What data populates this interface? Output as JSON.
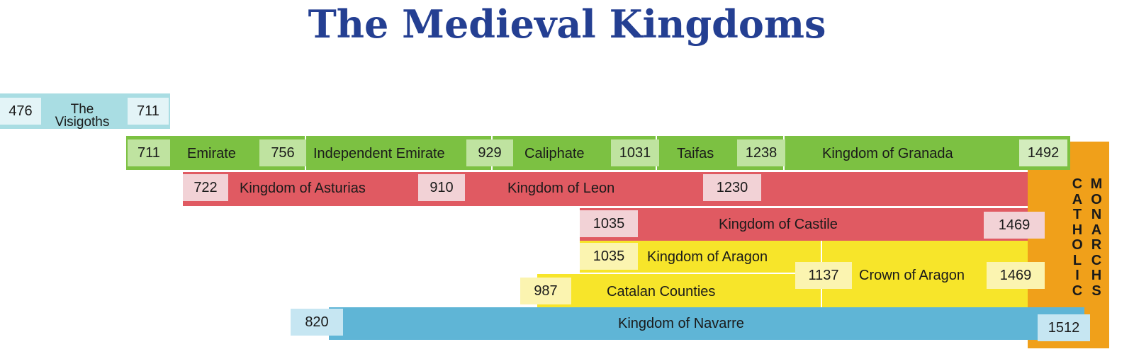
{
  "title": "The Medieval Kingdoms",
  "colors": {
    "title": "#243f92",
    "visigoths": "#a9dde3",
    "muslim": "#7cc142",
    "christian_west": "#e05a62",
    "aragon": "#f7e52a",
    "navarre": "#5fb5d6",
    "catholic_monarchs": "#f0a01a"
  },
  "visigoths": {
    "label": "The Visigoths",
    "start": "476",
    "end": "711"
  },
  "emirate_row": {
    "years": [
      "711",
      "756",
      "929",
      "1031",
      "1238",
      "1492"
    ],
    "periods": [
      "Emirate",
      "Independent Emirate",
      "Caliphate",
      "Taifas",
      "Kingdom of Granada"
    ]
  },
  "asturias_row": {
    "years": [
      "722",
      "910",
      "1230"
    ],
    "periods": [
      "Kingdom of Asturias",
      "Kingdom of Leon"
    ]
  },
  "castile_row": {
    "start": "1035",
    "label": "Kingdom of Castile",
    "end": "1469"
  },
  "aragon_row": {
    "start": "1035",
    "label": "Kingdom of Aragon"
  },
  "catalan_row": {
    "start": "987",
    "label": "Catalan Counties"
  },
  "crown_aragon": {
    "start": "1137",
    "label": "Crown of Aragon",
    "end": "1469"
  },
  "navarre_row": {
    "start": "820",
    "label": "Kingdom of Navarre",
    "end": "1512"
  },
  "catholic_monarchs": {
    "word1": "CATHOLIC",
    "word2": "MONARCHS"
  }
}
